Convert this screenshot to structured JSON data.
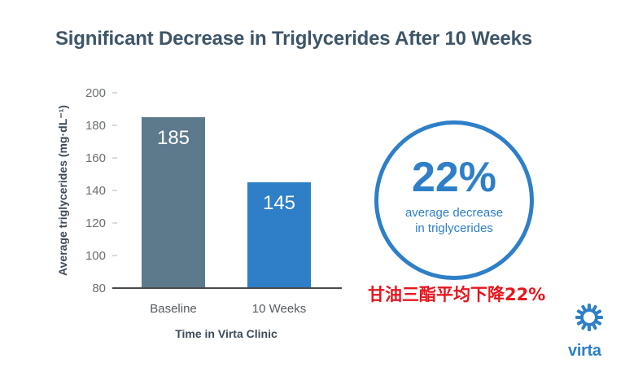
{
  "title": "Significant Decrease in Triglycerides After 10 Weeks",
  "chart_data": {
    "type": "bar",
    "categories": [
      "Baseline",
      "10 Weeks"
    ],
    "values": [
      185,
      145
    ],
    "data_labels": [
      "185",
      "145"
    ],
    "bar_colors": [
      "#5d7a8d",
      "#2e7fc7"
    ],
    "xlabel": "Time in Virta Clinic",
    "ylabel": "Average triglycerides (mg·dL⁻¹)",
    "ylim": [
      80,
      200
    ],
    "yticks": [
      80,
      100,
      120,
      140,
      160,
      180,
      200
    ],
    "grid": false
  },
  "stat": {
    "value": "22%",
    "caption_line1": "average decrease",
    "caption_line2": "in triglycerides",
    "color": "#2e7fc7"
  },
  "cn_caption": "甘油三酯平均下降22%",
  "logo": {
    "text": "virta",
    "icon": "virta-sun-icon"
  }
}
